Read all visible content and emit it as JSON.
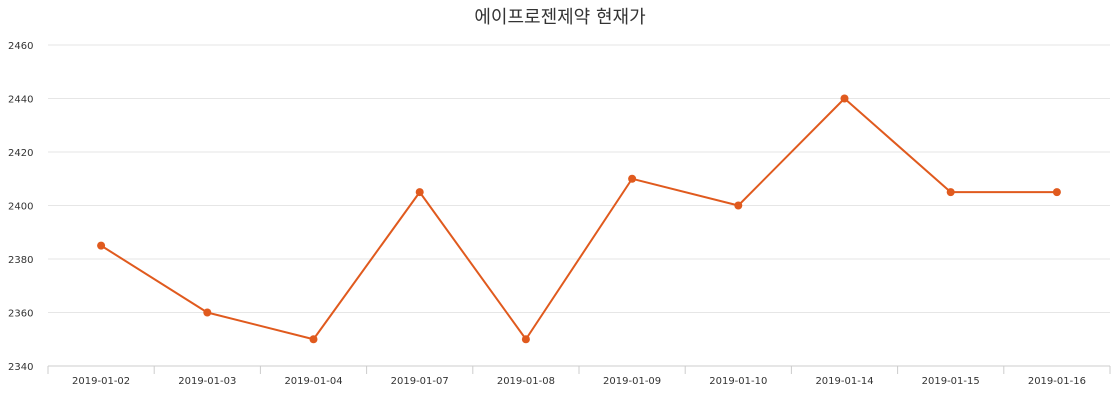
{
  "chart_data": {
    "type": "line",
    "title": "에이프로젠제약 현재가",
    "xlabel": "",
    "ylabel": "",
    "categories": [
      "2019-01-02",
      "2019-01-03",
      "2019-01-04",
      "2019-01-07",
      "2019-01-08",
      "2019-01-09",
      "2019-01-10",
      "2019-01-14",
      "2019-01-15",
      "2019-01-16"
    ],
    "series": [
      {
        "values": [
          2385,
          2360,
          2350,
          2405,
          2350,
          2410,
          2400,
          2440,
          2405,
          2405
        ],
        "color": "#e05a1e"
      }
    ],
    "ylim": [
      2340,
      2460
    ],
    "yticks": [
      2340,
      2360,
      2380,
      2400,
      2420,
      2440,
      2460
    ],
    "grid": true,
    "legend": "none"
  }
}
